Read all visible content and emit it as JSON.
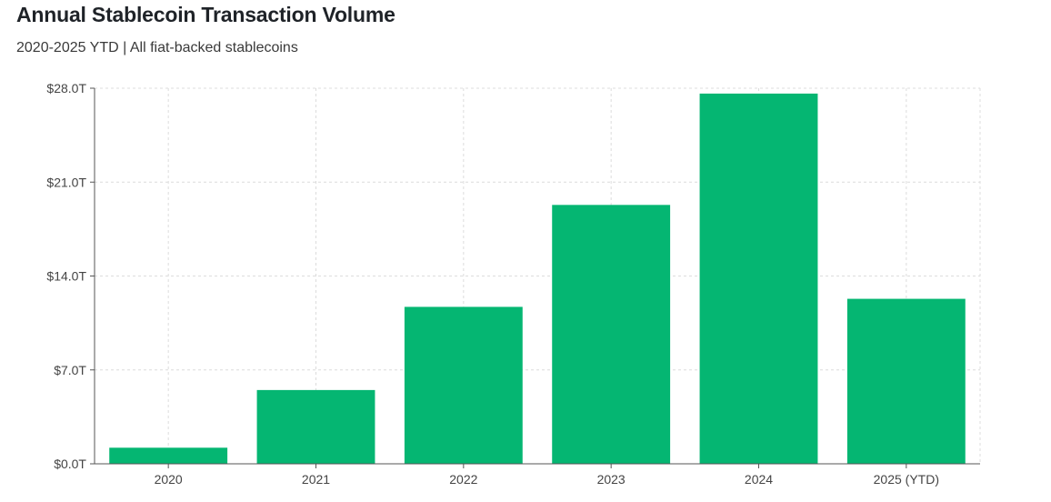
{
  "chart_data": {
    "type": "bar",
    "title": "Annual Stablecoin Transaction Volume",
    "subtitle": "2020-2025 YTD | All fiat-backed stablecoins",
    "xlabel": "",
    "ylabel": "",
    "categories": [
      "2020",
      "2021",
      "2022",
      "2023",
      "2024",
      "2025 (YTD)"
    ],
    "values": [
      1.2,
      5.5,
      11.7,
      19.3,
      27.6,
      12.3
    ],
    "unit": "trillion USD",
    "ylim": [
      0,
      28
    ],
    "yticks": [
      0,
      7,
      14,
      21,
      28
    ],
    "ytick_labels": [
      "$0.0T",
      "$7.0T",
      "$14.0T",
      "$21.0T",
      "$28.0T"
    ],
    "grid": true,
    "legend": "none",
    "bar_color": "#05b672",
    "grid_color": "#dcdcdc",
    "axis_color": "#555555"
  }
}
